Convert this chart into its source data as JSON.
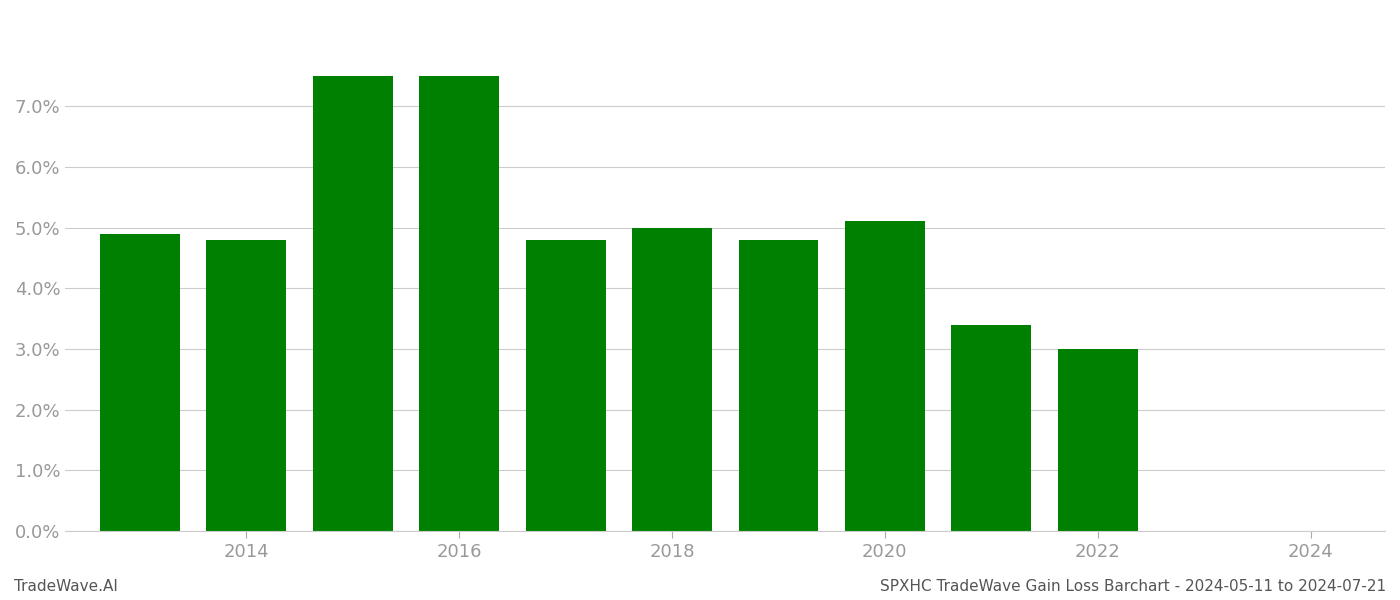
{
  "years": [
    2013,
    2014,
    2015,
    2016,
    2017,
    2018,
    2019,
    2020,
    2021,
    2022,
    2023
  ],
  "values": [
    0.049,
    0.048,
    0.075,
    0.075,
    0.048,
    0.05,
    0.048,
    0.051,
    0.034,
    0.03,
    0.0
  ],
  "bar_color": "#008000",
  "ylim": [
    0,
    0.085
  ],
  "yticks": [
    0.0,
    0.01,
    0.02,
    0.03,
    0.04,
    0.05,
    0.06,
    0.07
  ],
  "xtick_labels": [
    "2014",
    "2016",
    "2018",
    "2020",
    "2022",
    "2024"
  ],
  "xtick_positions": [
    2014,
    2016,
    2018,
    2020,
    2022,
    2024
  ],
  "xlim_left": 2012.3,
  "xlim_right": 2024.7,
  "footer_left": "TradeWave.AI",
  "footer_right": "SPXHC TradeWave Gain Loss Barchart - 2024-05-11 to 2024-07-21",
  "background_color": "#ffffff",
  "grid_color": "#cccccc",
  "bar_width": 0.75,
  "tick_label_color": "#999999",
  "footer_fontsize": 11
}
